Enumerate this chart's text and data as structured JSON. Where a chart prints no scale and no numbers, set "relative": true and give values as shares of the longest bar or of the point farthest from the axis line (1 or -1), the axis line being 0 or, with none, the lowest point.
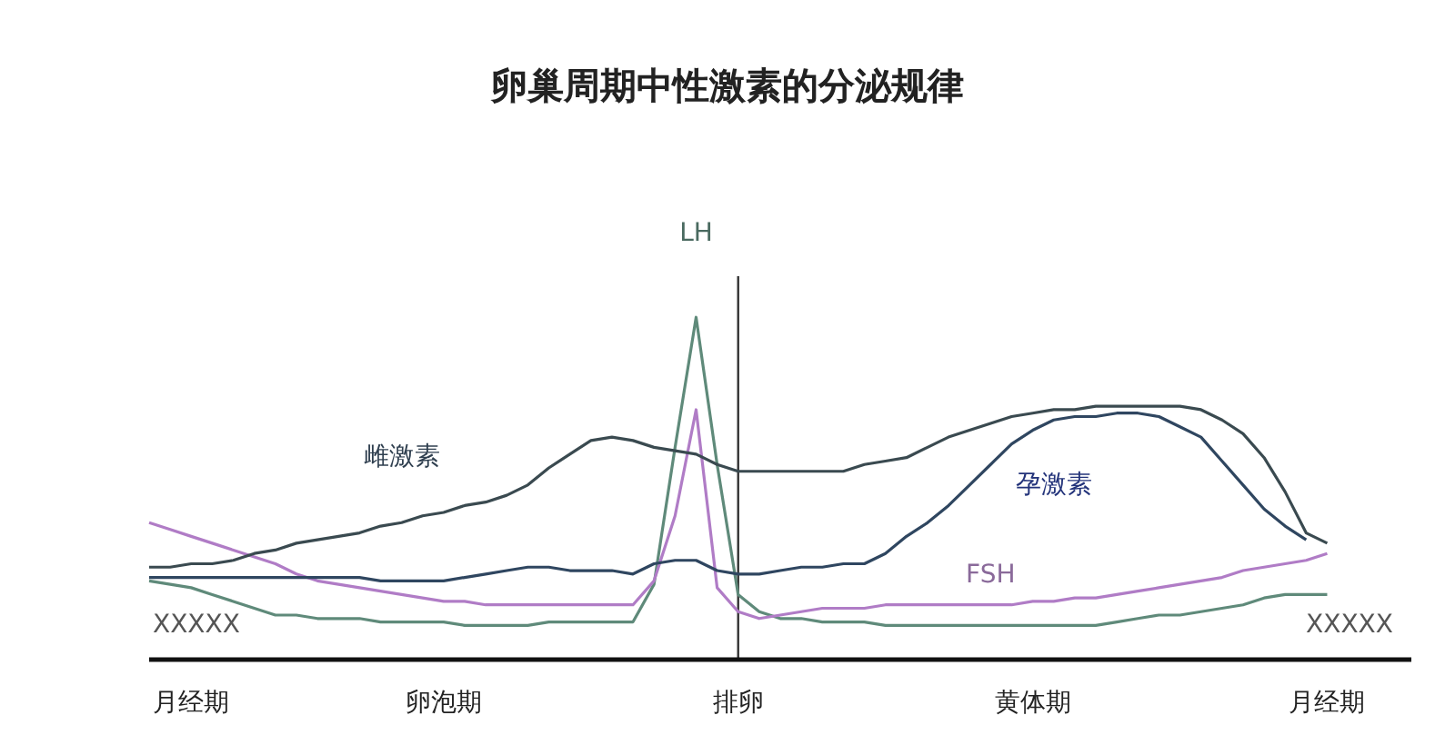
{
  "chart_data": {
    "type": "line",
    "title": "卵巢周期中性激素的分泌规律",
    "relative": true,
    "marker": "none",
    "line_style": "solid",
    "categories": [
      null,
      null,
      "月经期",
      null,
      null,
      null,
      null,
      null,
      null,
      null,
      null,
      null,
      null,
      null,
      "卵泡期",
      null,
      null,
      null,
      null,
      null,
      null,
      null,
      null,
      null,
      null,
      null,
      null,
      null,
      "排卵",
      null,
      null,
      null,
      null,
      null,
      null,
      null,
      null,
      null,
      null,
      null,
      null,
      null,
      "黄体期",
      null,
      null,
      null,
      null,
      null,
      null,
      null,
      null,
      null,
      null,
      null,
      null,
      null,
      "月经期",
      null,
      null,
      null,
      null
    ],
    "ref_lines": [
      {
        "axis": "x",
        "value": "排卵",
        "color": "#333333"
      }
    ],
    "series": [
      {
        "name": "LH",
        "color": "#5f8a7a",
        "values": [
          0.23,
          0.22,
          0.21,
          0.19,
          0.17,
          0.15,
          0.13,
          0.13,
          0.12,
          0.12,
          0.12,
          0.11,
          0.11,
          0.11,
          0.11,
          0.1,
          0.1,
          0.1,
          0.1,
          0.11,
          0.11,
          0.11,
          0.11,
          0.11,
          0.22,
          0.62,
          1.0,
          0.57,
          0.19,
          0.14,
          0.12,
          0.12,
          0.11,
          0.11,
          0.11,
          0.1,
          0.1,
          0.1,
          0.1,
          0.1,
          0.1,
          0.1,
          0.1,
          0.1,
          0.1,
          0.1,
          0.11,
          0.12,
          0.13,
          0.13,
          0.14,
          0.15,
          0.16,
          0.18,
          0.19,
          0.19,
          0.19,
          null,
          null,
          null,
          null
        ]
      },
      {
        "name": "FSH",
        "color": "#b07cc6",
        "values": [
          0.4,
          0.38,
          0.36,
          0.34,
          0.32,
          0.3,
          0.28,
          0.25,
          0.23,
          0.22,
          0.21,
          0.2,
          0.19,
          0.18,
          0.17,
          0.17,
          0.16,
          0.16,
          0.16,
          0.16,
          0.16,
          0.16,
          0.16,
          0.16,
          0.23,
          0.42,
          0.73,
          0.21,
          0.14,
          0.12,
          0.13,
          0.14,
          0.15,
          0.15,
          0.15,
          0.16,
          0.16,
          0.16,
          0.16,
          0.16,
          0.16,
          0.16,
          0.17,
          0.17,
          0.18,
          0.18,
          0.19,
          0.2,
          0.21,
          0.22,
          0.23,
          0.24,
          0.26,
          0.27,
          0.28,
          0.29,
          0.31,
          null,
          null,
          null,
          null
        ]
      },
      {
        "name": "雌激素",
        "color": "#3a4a50",
        "values": [
          0.27,
          0.27,
          0.28,
          0.28,
          0.29,
          0.31,
          0.32,
          0.34,
          0.35,
          0.36,
          0.37,
          0.39,
          0.4,
          0.42,
          0.43,
          0.45,
          0.46,
          0.48,
          0.51,
          0.56,
          0.6,
          0.64,
          0.65,
          0.64,
          0.62,
          0.61,
          0.6,
          0.57,
          0.55,
          0.55,
          0.55,
          0.55,
          0.55,
          0.55,
          0.57,
          0.58,
          0.59,
          0.62,
          0.65,
          0.67,
          0.69,
          0.71,
          0.72,
          0.73,
          0.73,
          0.74,
          0.74,
          0.74,
          0.74,
          0.74,
          0.73,
          0.7,
          0.66,
          0.59,
          0.49,
          0.37,
          0.34,
          null,
          null,
          null,
          null
        ]
      },
      {
        "name": "孕激素",
        "color": "#2f4660",
        "values": [
          0.24,
          0.24,
          0.24,
          0.24,
          0.24,
          0.24,
          0.24,
          0.24,
          0.24,
          0.24,
          0.24,
          0.23,
          0.23,
          0.23,
          0.23,
          0.24,
          0.25,
          0.26,
          0.27,
          0.27,
          0.26,
          0.26,
          0.26,
          0.25,
          0.28,
          0.29,
          0.29,
          0.26,
          0.25,
          0.25,
          0.26,
          0.27,
          0.27,
          0.28,
          0.28,
          0.31,
          0.36,
          0.4,
          0.45,
          0.51,
          0.57,
          0.63,
          0.67,
          0.7,
          0.71,
          0.71,
          0.72,
          0.72,
          0.71,
          0.68,
          0.65,
          0.58,
          0.51,
          0.44,
          0.39,
          0.35,
          null,
          null,
          null,
          null,
          null
        ]
      }
    ],
    "annotations": [
      "XXXXX",
      "XXXXX"
    ]
  }
}
